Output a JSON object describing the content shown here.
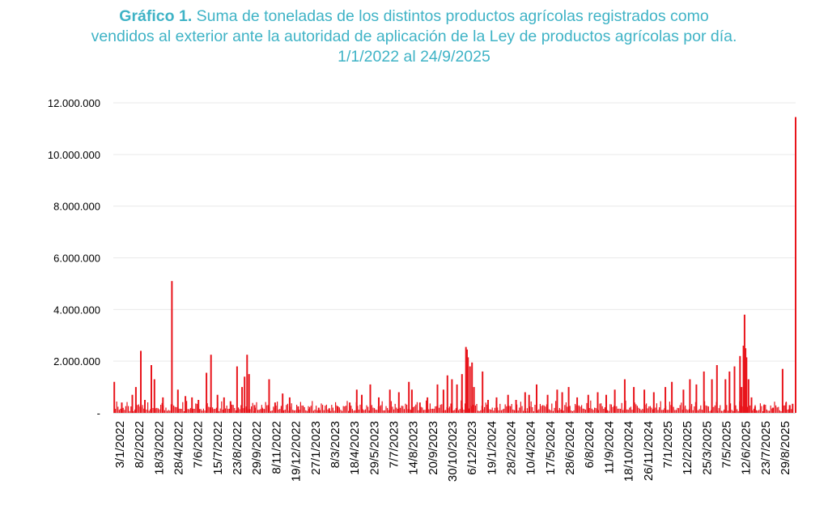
{
  "chart_data": {
    "type": "bar",
    "title_prefix": "Gráfico 1.",
    "title_lines": [
      "Suma de toneladas de los distintos productos agrícolas registrados como",
      "vendidos al exterior ante la autoridad de aplicación de la Ley de productos agrícolas por día.",
      "1/1/2022 al 24/9/2025"
    ],
    "xlabel": "",
    "ylabel": "",
    "ylim": [
      0,
      12000000
    ],
    "yticks": [
      {
        "value": 0,
        "label": "-"
      },
      {
        "value": 2000000,
        "label": "2.000.000"
      },
      {
        "value": 4000000,
        "label": "4.000.000"
      },
      {
        "value": 6000000,
        "label": "6.000.000"
      },
      {
        "value": 8000000,
        "label": "8.000.000"
      },
      {
        "value": 10000000,
        "label": "10.000.000"
      },
      {
        "value": 12000000,
        "label": "12.000.000"
      }
    ],
    "x_tick_labels": [
      "3/1/2022",
      "8/2/2022",
      "18/3/2022",
      "28/4/2022",
      "7/6/2022",
      "15/7/2022",
      "23/8/2022",
      "29/9/2022",
      "8/11/2022",
      "19/12/2022",
      "27/1/2023",
      "8/3/2023",
      "18/4/2023",
      "29/5/2023",
      "7/7/2023",
      "14/8/2023",
      "20/9/2023",
      "30/10/2023",
      "6/12/2023",
      "19/1/2024",
      "28/2/2024",
      "10/4/2024",
      "17/5/2024",
      "28/6/2024",
      "6/8/2024",
      "11/9/2024",
      "18/10/2024",
      "26/11/2024",
      "7/1/2025",
      "12/2/2025",
      "25/3/2025",
      "7/5/2025",
      "12/6/2025",
      "23/7/2025",
      "29/8/2025"
    ],
    "grid": true,
    "legend": "none",
    "color": "#e8141b",
    "x": [
      "2022-01-03",
      "2022-01-18",
      "2022-02-08",
      "2022-02-15",
      "2022-02-25",
      "2022-03-05",
      "2022-03-18",
      "2022-03-24",
      "2022-04-10",
      "2022-04-28",
      "2022-05-10",
      "2022-05-25",
      "2022-06-07",
      "2022-06-20",
      "2022-07-06",
      "2022-07-15",
      "2022-07-28",
      "2022-08-10",
      "2022-08-23",
      "2022-09-05",
      "2022-09-15",
      "2022-09-20",
      "2022-09-25",
      "2022-09-29",
      "2022-10-10",
      "2022-10-25",
      "2022-11-08",
      "2022-11-20",
      "2022-12-05",
      "2022-12-19",
      "2023-01-05",
      "2023-01-27",
      "2023-02-15",
      "2023-03-08",
      "2023-03-25",
      "2023-04-18",
      "2023-05-02",
      "2023-05-12",
      "2023-05-29",
      "2023-06-15",
      "2023-07-07",
      "2023-07-25",
      "2023-08-14",
      "2023-08-20",
      "2023-09-05",
      "2023-09-20",
      "2023-10-10",
      "2023-10-22",
      "2023-10-30",
      "2023-11-08",
      "2023-11-18",
      "2023-11-28",
      "2023-12-06",
      "2023-12-08",
      "2023-12-10",
      "2023-12-14",
      "2023-12-18",
      "2023-12-22",
      "2024-01-08",
      "2024-01-19",
      "2024-02-05",
      "2024-02-28",
      "2024-03-15",
      "2024-04-02",
      "2024-04-10",
      "2024-04-25",
      "2024-05-17",
      "2024-06-05",
      "2024-06-15",
      "2024-06-28",
      "2024-07-15",
      "2024-08-06",
      "2024-08-25",
      "2024-09-11",
      "2024-09-28",
      "2024-10-18",
      "2024-11-05",
      "2024-11-26",
      "2024-12-15",
      "2025-01-07",
      "2025-01-20",
      "2025-02-12",
      "2025-02-25",
      "2025-03-10",
      "2025-03-25",
      "2025-04-10",
      "2025-04-20",
      "2025-05-07",
      "2025-05-15",
      "2025-05-25",
      "2025-06-05",
      "2025-06-08",
      "2025-06-12",
      "2025-06-14",
      "2025-06-16",
      "2025-06-18",
      "2025-06-22",
      "2025-06-28",
      "2025-07-05",
      "2025-07-23",
      "2025-08-10",
      "2025-08-29",
      "2025-09-05",
      "2025-09-12",
      "2025-09-18",
      "2025-09-24"
    ],
    "values": [
      1200000,
      400000,
      700000,
      1000000,
      2400000,
      500000,
      1850000,
      1300000,
      600000,
      5100000,
      900000,
      650000,
      600000,
      500000,
      1550000,
      2250000,
      700000,
      600000,
      450000,
      1800000,
      1000000,
      1400000,
      2250000,
      1500000,
      300000,
      200000,
      1300000,
      400000,
      750000,
      600000,
      250000,
      150000,
      200000,
      180000,
      250000,
      400000,
      900000,
      700000,
      1100000,
      600000,
      900000,
      800000,
      1200000,
      900000,
      400000,
      600000,
      1100000,
      900000,
      1450000,
      1300000,
      1100000,
      1500000,
      2550000,
      2450000,
      2150000,
      1800000,
      1950000,
      1000000,
      1600000,
      500000,
      600000,
      700000,
      500000,
      800000,
      700000,
      1100000,
      700000,
      900000,
      800000,
      1000000,
      600000,
      700000,
      800000,
      700000,
      900000,
      1300000,
      1000000,
      900000,
      800000,
      1000000,
      1200000,
      900000,
      1300000,
      1100000,
      1600000,
      1300000,
      1850000,
      1300000,
      1600000,
      1800000,
      2200000,
      1000000,
      2600000,
      3800000,
      2500000,
      2150000,
      1300000,
      600000,
      250000,
      300000,
      200000,
      1700000,
      400000,
      300000,
      350000,
      11450000
    ]
  }
}
